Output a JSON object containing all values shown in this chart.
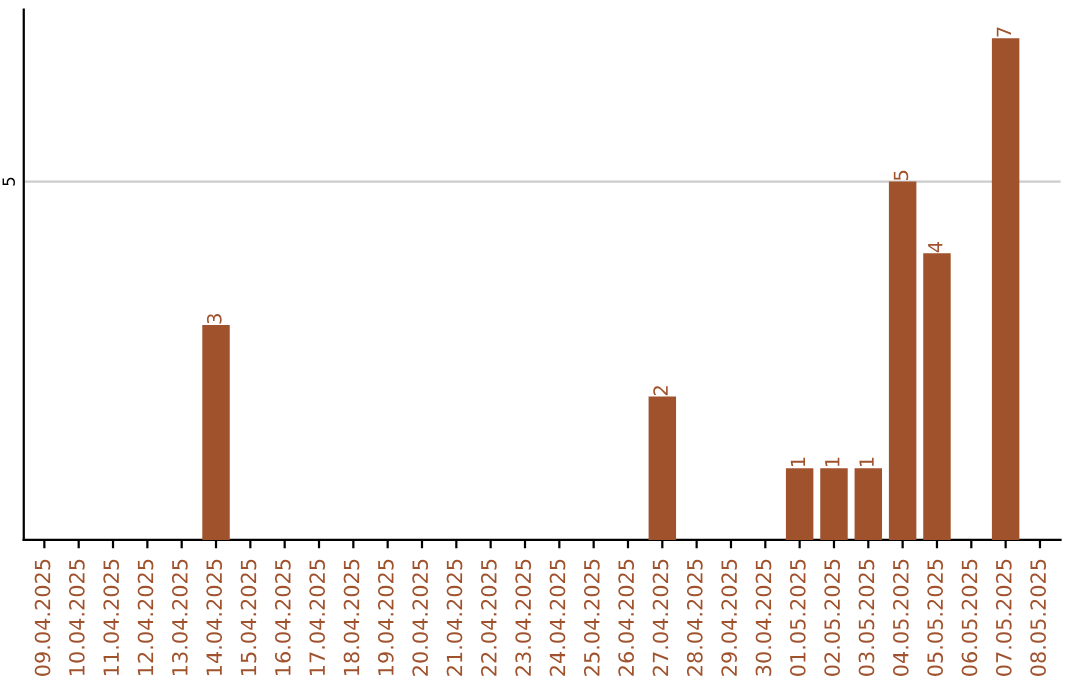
{
  "chart_data": {
    "type": "bar",
    "categories": [
      "09.04.2025",
      "10.04.2025",
      "11.04.2025",
      "12.04.2025",
      "13.04.2025",
      "14.04.2025",
      "15.04.2025",
      "16.04.2025",
      "17.04.2025",
      "18.04.2025",
      "19.04.2025",
      "20.04.2025",
      "21.04.2025",
      "22.04.2025",
      "23.04.2025",
      "24.04.2025",
      "25.04.2025",
      "26.04.2025",
      "27.04.2025",
      "28.04.2025",
      "29.04.2025",
      "30.04.2025",
      "01.05.2025",
      "02.05.2025",
      "03.05.2025",
      "04.05.2025",
      "05.05.2025",
      "06.05.2025",
      "07.05.2025",
      "08.05.2025"
    ],
    "values": [
      0,
      0,
      0,
      0,
      0,
      3,
      0,
      0,
      0,
      0,
      0,
      0,
      0,
      0,
      0,
      0,
      0,
      0,
      2,
      0,
      0,
      0,
      1,
      1,
      1,
      5,
      4,
      0,
      7,
      0
    ],
    "value_labels": [
      null,
      null,
      null,
      null,
      null,
      "3",
      null,
      null,
      null,
      null,
      null,
      null,
      null,
      null,
      null,
      null,
      null,
      null,
      "2",
      null,
      null,
      null,
      "1",
      "1",
      "1",
      "5",
      "4",
      null,
      "7",
      null
    ],
    "color": "#a0522d",
    "ylim": [
      0,
      7.4
    ],
    "yticks": [
      5
    ],
    "grid": "y"
  }
}
